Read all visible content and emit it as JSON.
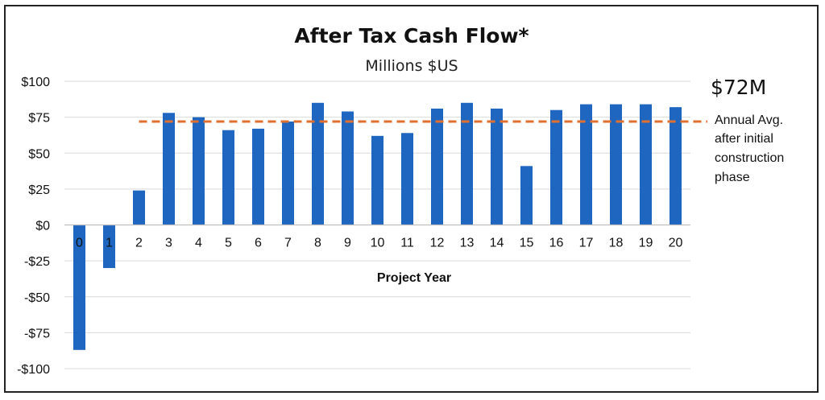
{
  "chart_data": {
    "type": "bar",
    "title": "After Tax Cash Flow*",
    "subtitle": "Millions $US",
    "xlabel": "Project Year",
    "ylabel": "",
    "categories": [
      "0",
      "1",
      "2",
      "3",
      "4",
      "5",
      "6",
      "7",
      "8",
      "9",
      "10",
      "11",
      "12",
      "13",
      "14",
      "15",
      "16",
      "17",
      "18",
      "19",
      "20"
    ],
    "values": [
      -87,
      -30,
      24,
      78,
      75,
      66,
      67,
      72,
      85,
      79,
      62,
      64,
      81,
      85,
      81,
      41,
      80,
      84,
      84,
      84,
      82
    ],
    "ylim": [
      -100,
      100
    ],
    "yticks": [
      100,
      75,
      50,
      25,
      0,
      -25,
      -50,
      -75,
      -100
    ],
    "ytick_labels": [
      "$100",
      "$75",
      "$50",
      "$25",
      "$0",
      "-$25",
      "-$50",
      "-$75",
      "-$100"
    ],
    "grid": true,
    "bar_color": "#1f66c1",
    "average": {
      "value": 72,
      "value_label": "$72M",
      "note_lines": [
        "Annual Avg.",
        "after initial",
        "construction",
        "phase"
      ],
      "start_category": "2",
      "line_color": "#e07030",
      "style": "dashed"
    }
  }
}
